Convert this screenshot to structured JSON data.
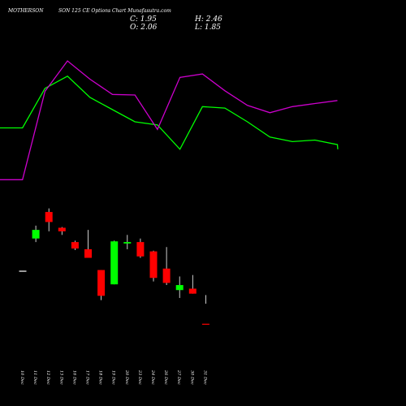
{
  "header": {
    "symbol": "MOTHERSON",
    "subtitle": "SON 125 CE Options Chart Munafasutra.com",
    "open": "O: 2.06",
    "high": "H: 2.46",
    "low": "L: 1.85",
    "close": "C: 1.95"
  },
  "colors": {
    "background": "#000000",
    "upper_band": "#00ff00",
    "lower_band": "#cc00cc",
    "up_candle": "#00ff00",
    "down_candle": "#ff0000",
    "wick": "#ffffff",
    "text": "#ffffff"
  },
  "chart_data": {
    "type": "candlestick",
    "categories": [
      "10 Dec",
      "11 Dec",
      "12 Dec",
      "13 Dec",
      "16 Dec",
      "17 Dec",
      "18 Dec",
      "19 Dec",
      "20 Dec",
      "23 Dec",
      "24 Dec",
      "26 Dec",
      "27 Dec",
      "30 Dec",
      "31 Dec"
    ],
    "ohlc": [
      {
        "o": 2.8,
        "h": 2.8,
        "l": 2.8,
        "c": 2.8
      },
      {
        "o": 3.25,
        "h": 3.43,
        "l": 3.2,
        "c": 3.37
      },
      {
        "o": 3.62,
        "h": 3.67,
        "l": 3.35,
        "c": 3.48
      },
      {
        "o": 3.4,
        "h": 3.41,
        "l": 3.3,
        "c": 3.35
      },
      {
        "o": 3.2,
        "h": 3.22,
        "l": 3.09,
        "c": 3.11
      },
      {
        "o": 3.1,
        "h": 3.37,
        "l": 2.98,
        "c": 2.98
      },
      {
        "o": 2.81,
        "h": 2.81,
        "l": 2.39,
        "c": 2.45
      },
      {
        "o": 2.61,
        "h": 3.22,
        "l": 2.61,
        "c": 3.21
      },
      {
        "o": 3.18,
        "h": 3.3,
        "l": 3.1,
        "c": 3.2
      },
      {
        "o": 3.2,
        "h": 3.25,
        "l": 2.98,
        "c": 3.0
      },
      {
        "o": 3.07,
        "h": 3.08,
        "l": 2.65,
        "c": 2.7
      },
      {
        "o": 2.83,
        "h": 3.13,
        "l": 2.6,
        "c": 2.63
      },
      {
        "o": 2.53,
        "h": 2.72,
        "l": 2.42,
        "c": 2.6
      },
      {
        "o": 2.55,
        "h": 2.74,
        "l": 2.48,
        "c": 2.48
      },
      {
        "o": 2.06,
        "h": 2.46,
        "l": 1.85,
        "c": 1.95
      }
    ],
    "upper_band": [
      7.2,
      7.2,
      8.5,
      8.9,
      8.2,
      7.8,
      7.4,
      7.3,
      6.5,
      7.9,
      7.85,
      7.4,
      6.9,
      6.75,
      6.8,
      6.65,
      6.5
    ],
    "lower_band": [
      5.5,
      5.5,
      8.4,
      9.4,
      8.8,
      8.3,
      8.28,
      7.15,
      8.86,
      8.97,
      8.42,
      7.94,
      7.7,
      7.9,
      8.0,
      8.1
    ],
    "grid": false,
    "legend": "none"
  }
}
